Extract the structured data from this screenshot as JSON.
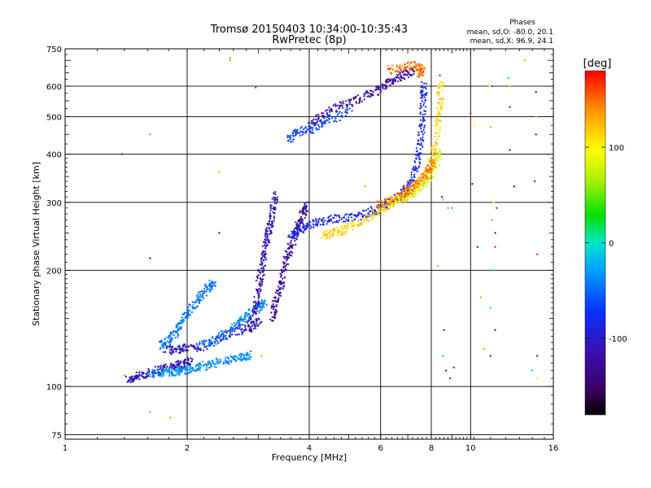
{
  "chart_data": {
    "type": "scatter",
    "title": "Tromsø 20150403 10:34:00-10:35:43",
    "subtitle": "RwPretec (8p)",
    "xlabel": "Frequency [MHz]",
    "ylabel": "Stationary phase Virtual Height [km]",
    "x_scale": "log",
    "y_scale": "log",
    "xlim": [
      1,
      16
    ],
    "ylim": [
      73,
      750
    ],
    "x_ticks": [
      1,
      2,
      4,
      6,
      8,
      10,
      16
    ],
    "x_tick_labels": [
      "1",
      "2",
      "4",
      "6",
      "8",
      "10",
      "16"
    ],
    "y_ticks": [
      75,
      100,
      200,
      300,
      400,
      500,
      600,
      750
    ],
    "y_tick_labels": [
      "75",
      "100",
      "200",
      "300",
      "400",
      "500",
      "600",
      "750"
    ],
    "grid": true,
    "stats": {
      "header": "Phases",
      "line_o": "mean, sd,O: -80.0, 20.1",
      "line_x": "mean, sd,X:  96.9, 24.1"
    },
    "colorbar": {
      "label": "[deg]",
      "range": [
        -180,
        180
      ],
      "ticks": [
        100,
        0,
        -100
      ],
      "tick_labels": [
        "100",
        "0",
        "-100"
      ]
    },
    "traces": [
      {
        "phase": -110,
        "points": [
          [
            1.43,
            104
          ],
          [
            1.5,
            106
          ],
          [
            1.6,
            108
          ],
          [
            1.72,
            111
          ],
          [
            1.85,
            113
          ],
          [
            1.95,
            115
          ],
          [
            2.05,
            116
          ]
        ]
      },
      {
        "phase": -35,
        "points": [
          [
            1.62,
            108
          ],
          [
            1.75,
            109
          ],
          [
            1.85,
            109
          ],
          [
            1.95,
            110
          ],
          [
            2.05,
            111
          ],
          [
            2.2,
            113
          ],
          [
            2.35,
            115
          ],
          [
            2.55,
            117
          ],
          [
            2.75,
            119
          ],
          [
            2.85,
            121
          ]
        ]
      },
      {
        "phase": -45,
        "points": [
          [
            1.72,
            128
          ],
          [
            1.8,
            131
          ],
          [
            1.88,
            138
          ],
          [
            1.95,
            148
          ],
          [
            2.05,
            160
          ],
          [
            2.15,
            170
          ],
          [
            2.25,
            181
          ],
          [
            2.35,
            186
          ]
        ]
      },
      {
        "phase": -105,
        "points": [
          [
            1.78,
            124
          ],
          [
            1.9,
            125
          ],
          [
            2.0,
            126
          ],
          [
            2.2,
            127
          ],
          [
            2.4,
            133
          ],
          [
            2.65,
            139
          ],
          [
            2.85,
            143
          ],
          [
            3.05,
            147
          ]
        ]
      },
      {
        "phase": -40,
        "points": [
          [
            2.15,
            128
          ],
          [
            2.35,
            132
          ],
          [
            2.55,
            139
          ],
          [
            2.7,
            147
          ],
          [
            2.85,
            154
          ],
          [
            3.0,
            160
          ],
          [
            3.1,
            166
          ]
        ]
      },
      {
        "phase": -115,
        "points": [
          [
            2.85,
            140
          ],
          [
            2.95,
            160
          ],
          [
            3.0,
            180
          ],
          [
            3.05,
            200
          ],
          [
            3.1,
            220
          ],
          [
            3.15,
            240
          ],
          [
            3.2,
            260
          ],
          [
            3.25,
            285
          ],
          [
            3.3,
            315
          ]
        ]
      },
      {
        "phase": -125,
        "points": [
          [
            3.25,
            150
          ],
          [
            3.3,
            165
          ],
          [
            3.4,
            180
          ],
          [
            3.45,
            200
          ],
          [
            3.55,
            220
          ],
          [
            3.65,
            240
          ],
          [
            3.75,
            260
          ],
          [
            3.85,
            280
          ],
          [
            3.95,
            300
          ]
        ]
      },
      {
        "phase": -85,
        "points": [
          [
            3.6,
            245
          ],
          [
            3.8,
            255
          ],
          [
            4.0,
            262
          ],
          [
            4.3,
            268
          ],
          [
            4.7,
            272
          ],
          [
            5.2,
            276
          ],
          [
            5.6,
            282
          ],
          [
            6.0,
            290
          ],
          [
            6.4,
            300
          ],
          [
            6.8,
            315
          ],
          [
            7.1,
            335
          ],
          [
            7.35,
            370
          ],
          [
            7.5,
            420
          ],
          [
            7.6,
            480
          ],
          [
            7.65,
            560
          ],
          [
            7.68,
            610
          ]
        ]
      },
      {
        "phase": 115,
        "points": [
          [
            4.3,
            245
          ],
          [
            4.6,
            250
          ],
          [
            4.9,
            255
          ],
          [
            5.3,
            264
          ],
          [
            5.8,
            282
          ],
          [
            6.2,
            292
          ],
          [
            6.6,
            302
          ],
          [
            7.0,
            312
          ],
          [
            7.4,
            330
          ],
          [
            7.8,
            360
          ],
          [
            8.1,
            400
          ],
          [
            8.3,
            470
          ],
          [
            8.4,
            540
          ],
          [
            8.45,
            615
          ]
        ]
      },
      {
        "phase": 85,
        "points": [
          [
            6.3,
            300
          ],
          [
            6.8,
            310
          ],
          [
            7.3,
            320
          ],
          [
            7.8,
            340
          ],
          [
            8.2,
            370
          ],
          [
            8.4,
            410
          ]
        ]
      },
      {
        "phase": 145,
        "points": [
          [
            5.9,
            295
          ],
          [
            6.4,
            305
          ],
          [
            6.9,
            318
          ],
          [
            7.2,
            328
          ],
          [
            7.6,
            345
          ],
          [
            7.85,
            360
          ],
          [
            8.1,
            380
          ]
        ]
      },
      {
        "phase": -120,
        "points": [
          [
            4.0,
            470
          ],
          [
            4.3,
            500
          ],
          [
            4.7,
            530
          ],
          [
            5.2,
            550
          ],
          [
            5.7,
            575
          ],
          [
            6.1,
            600
          ],
          [
            6.5,
            625
          ],
          [
            6.9,
            645
          ],
          [
            7.2,
            660
          ]
        ]
      },
      {
        "phase": -65,
        "points": [
          [
            3.55,
            440
          ],
          [
            3.75,
            455
          ],
          [
            4.1,
            465
          ],
          [
            4.5,
            492
          ],
          [
            5.1,
            518
          ]
        ]
      },
      {
        "phase": 150,
        "points": [
          [
            6.3,
            660
          ],
          [
            6.8,
            670
          ],
          [
            7.3,
            680
          ],
          [
            7.6,
            665
          ],
          [
            7.5,
            640
          ]
        ]
      }
    ],
    "scatter": [
      {
        "phase": 135,
        "points": [
          [
            1.4,
            107
          ],
          [
            1.82,
            83
          ],
          [
            2.4,
            360
          ],
          [
            2.55,
            700
          ],
          [
            3.05,
            120
          ],
          [
            5.5,
            330
          ],
          [
            8.3,
            205
          ],
          [
            8.55,
            305
          ],
          [
            10.6,
            170
          ],
          [
            10.8,
            125
          ],
          [
            11.1,
            600
          ],
          [
            11.2,
            470
          ],
          [
            12.5,
            600
          ],
          [
            13.6,
            700
          ],
          [
            14.5,
            500
          ]
        ]
      },
      {
        "phase": 40,
        "points": [
          [
            1.62,
            86
          ],
          [
            2.55,
            710
          ],
          [
            1.62,
            450
          ],
          [
            8.8,
            290
          ],
          [
            11.3,
            270
          ],
          [
            14.5,
            580
          ]
        ]
      },
      {
        "phase": -120,
        "points": [
          [
            1.38,
            400
          ],
          [
            1.62,
            215
          ],
          [
            2.4,
            250
          ],
          [
            8.5,
            310
          ],
          [
            8.6,
            140
          ],
          [
            8.7,
            110
          ],
          [
            8.9,
            105
          ],
          [
            9.1,
            112
          ],
          [
            10.1,
            335
          ],
          [
            10.4,
            230
          ],
          [
            11.2,
            120
          ],
          [
            11.5,
            140
          ],
          [
            12.5,
            410
          ],
          [
            12.8,
            330
          ],
          [
            14.4,
            340
          ],
          [
            14.5,
            580
          ],
          [
            14.6,
            120
          ]
        ]
      },
      {
        "phase": -15,
        "points": [
          [
            2.15,
            110
          ],
          [
            8.55,
            120
          ],
          [
            9.0,
            290
          ],
          [
            11.2,
            160
          ],
          [
            11.4,
            200
          ],
          [
            12.4,
            630
          ],
          [
            14.2,
            110
          ]
        ]
      },
      {
        "phase": 175,
        "points": [
          [
            2.95,
            595
          ],
          [
            8.4,
            640
          ],
          [
            10.0,
            510
          ],
          [
            11.5,
            230
          ],
          [
            11.6,
            290
          ],
          [
            14.6,
            220
          ]
        ]
      },
      {
        "phase": 100,
        "points": [
          [
            10.2,
            475
          ],
          [
            11.2,
            600
          ],
          [
            11.4,
            300
          ],
          [
            14.6,
            105
          ]
        ]
      },
      {
        "phase": -100,
        "points": [
          [
            11.3,
            600
          ],
          [
            11.5,
            250
          ],
          [
            12.5,
            530
          ],
          [
            14.5,
            450
          ]
        ]
      }
    ]
  }
}
